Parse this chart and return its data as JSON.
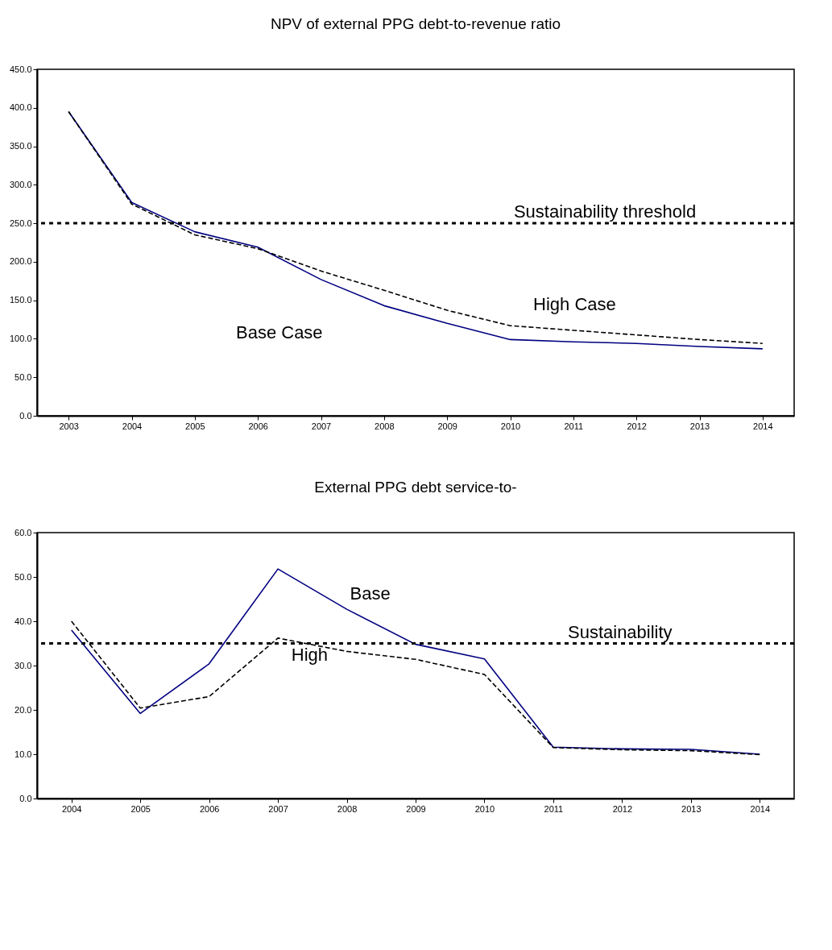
{
  "chart_data": [
    {
      "type": "line",
      "title": "NPV of external PPG debt-to-revenue ratio",
      "categories": [
        "2003",
        "2004",
        "2005",
        "2006",
        "2007",
        "2008",
        "2009",
        "2010",
        "2011",
        "2012",
        "2013",
        "2014"
      ],
      "series": [
        {
          "color": "#000080",
          "line_style": "solid",
          "values": [
            395,
            277,
            239,
            219,
            177,
            143,
            120,
            99,
            96,
            94,
            90,
            87
          ]
        },
        {
          "color": "#000000",
          "line_style": "dashed",
          "values": [
            395,
            275,
            235,
            217,
            188,
            163,
            137,
            117,
            111,
            105,
            99,
            94
          ]
        }
      ],
      "ylim": [
        0,
        450
      ],
      "yticks": [
        {
          "value": 0,
          "label": "0.0"
        },
        {
          "value": 50,
          "label": "50.0"
        },
        {
          "value": 100,
          "label": "100.0"
        },
        {
          "value": 150,
          "label": "150.0"
        },
        {
          "value": 200,
          "label": "200.0"
        },
        {
          "value": 250,
          "label": "250.0"
        },
        {
          "value": 300,
          "label": "300.0"
        },
        {
          "value": 350,
          "label": "350.0"
        },
        {
          "value": 400,
          "label": "400.0"
        },
        {
          "value": 450,
          "label": "450.0"
        }
      ],
      "ref_lines": [
        {
          "axis": "y",
          "value": 250,
          "label": "Sustainability threshold",
          "color": "#000000",
          "line_style": "dotted"
        }
      ],
      "annotations": [
        "Base Case",
        "High Case"
      ],
      "grid": false
    },
    {
      "type": "line",
      "title": "External PPG debt service-to-",
      "categories": [
        "2004",
        "2005",
        "2006",
        "2007",
        "2008",
        "2009",
        "2010",
        "2011",
        "2012",
        "2013",
        "2014"
      ],
      "series": [
        {
          "color": "#000080",
          "line_style": "solid",
          "values": [
            38,
            19.2,
            30.4,
            51.8,
            42.7,
            34.8,
            31.5,
            11.6,
            11.2,
            11.1,
            10
          ]
        },
        {
          "color": "#000000",
          "line_style": "dashed",
          "values": [
            40,
            20.4,
            23,
            36.2,
            33.2,
            31.4,
            28,
            11.5,
            11,
            10.8,
            9.9
          ]
        }
      ],
      "ylim": [
        0,
        60
      ],
      "yticks": [
        {
          "value": 0,
          "label": "0.0"
        },
        {
          "value": 10,
          "label": "10.0"
        },
        {
          "value": 20,
          "label": "20.0"
        },
        {
          "value": 30,
          "label": "30.0"
        },
        {
          "value": 40,
          "label": "40.0"
        },
        {
          "value": 50,
          "label": "50.0"
        },
        {
          "value": 60,
          "label": "60.0"
        }
      ],
      "ref_lines": [
        {
          "axis": "y",
          "value": 35,
          "label": "Sustainability",
          "color": "#000000",
          "line_style": "dotted"
        }
      ],
      "annotations": [
        "Base",
        "High"
      ],
      "grid": false
    }
  ]
}
